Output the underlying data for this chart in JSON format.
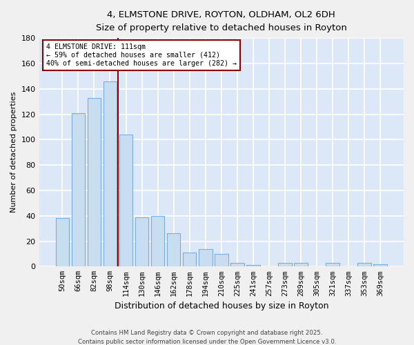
{
  "title": "4, ELMSTONE DRIVE, ROYTON, OLDHAM, OL2 6DH",
  "subtitle": "Size of property relative to detached houses in Royton",
  "xlabel": "Distribution of detached houses by size in Royton",
  "ylabel": "Number of detached properties",
  "bar_labels": [
    "50sqm",
    "66sqm",
    "82sqm",
    "98sqm",
    "114sqm",
    "130sqm",
    "146sqm",
    "162sqm",
    "178sqm",
    "194sqm",
    "210sqm",
    "225sqm",
    "241sqm",
    "257sqm",
    "273sqm",
    "289sqm",
    "305sqm",
    "321sqm",
    "337sqm",
    "353sqm",
    "369sqm"
  ],
  "bar_values": [
    38,
    121,
    133,
    146,
    104,
    39,
    40,
    26,
    11,
    14,
    10,
    3,
    1,
    0,
    3,
    3,
    0,
    3,
    0,
    3,
    2
  ],
  "bar_color": "#c8ddf0",
  "bar_edgecolor": "#7aade0",
  "plot_bg_color": "#dce8f8",
  "fig_bg_color": "#f0f0f0",
  "grid_color": "#ffffff",
  "vline_color": "#8b0000",
  "vline_x": 3.5,
  "annotation_text_line1": "4 ELMSTONE DRIVE: 111sqm",
  "annotation_text_line2": "← 59% of detached houses are smaller (412)",
  "annotation_text_line3": "40% of semi-detached houses are larger (282) →",
  "ylim": [
    0,
    180
  ],
  "yticks": [
    0,
    20,
    40,
    60,
    80,
    100,
    120,
    140,
    160,
    180
  ],
  "footer_line1": "Contains HM Land Registry data © Crown copyright and database right 2025.",
  "footer_line2": "Contains public sector information licensed under the Open Government Licence v3.0."
}
